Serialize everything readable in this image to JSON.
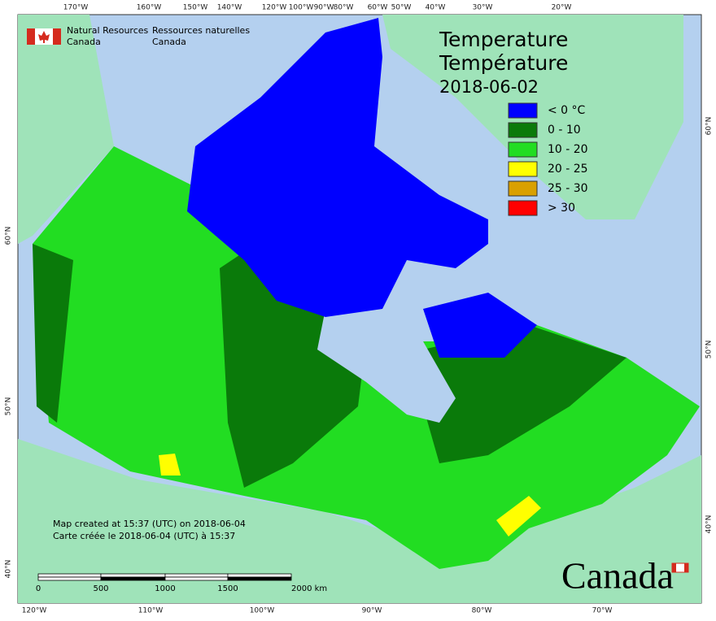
{
  "header": {
    "org_en": [
      "Natural Resources",
      "Canada"
    ],
    "org_fr": [
      "Ressources naturelles",
      "Canada"
    ]
  },
  "title": {
    "en": "Temperature",
    "fr": "Température",
    "date": "2018-06-02"
  },
  "legend": [
    {
      "label": "< 0 °C",
      "color": "#0000ff"
    },
    {
      "label": "0 - 10",
      "color": "#0a7a0a"
    },
    {
      "label": "10 - 20",
      "color": "#22dd22"
    },
    {
      "label": "20 - 25",
      "color": "#ffff00"
    },
    {
      "label": "25 - 30",
      "color": "#d9a000"
    },
    {
      "label": "> 30",
      "color": "#ff0000"
    }
  ],
  "graticule": {
    "top": [
      "170°W",
      "160°W",
      "150°W",
      "140°W",
      "120°W",
      "100°W",
      "90°W",
      "80°W",
      "60°W",
      "50°W",
      "40°W",
      "30°W",
      "20°W"
    ],
    "bottom": [
      "120°W",
      "110°W",
      "100°W",
      "90°W",
      "80°W",
      "70°W"
    ],
    "left": [
      "60°N",
      "50°N",
      "40°N"
    ],
    "right": [
      "60°N",
      "50°N",
      "40°N"
    ]
  },
  "notes": [
    "Map created at 15:37 (UTC) on 2018-06-04",
    "Carte créée le 2018-06-04 (UTC) à 15:37"
  ],
  "scale_bar": [
    "0",
    "500",
    "1000",
    "1500",
    "2000 km"
  ],
  "wordmark": "Canada"
}
